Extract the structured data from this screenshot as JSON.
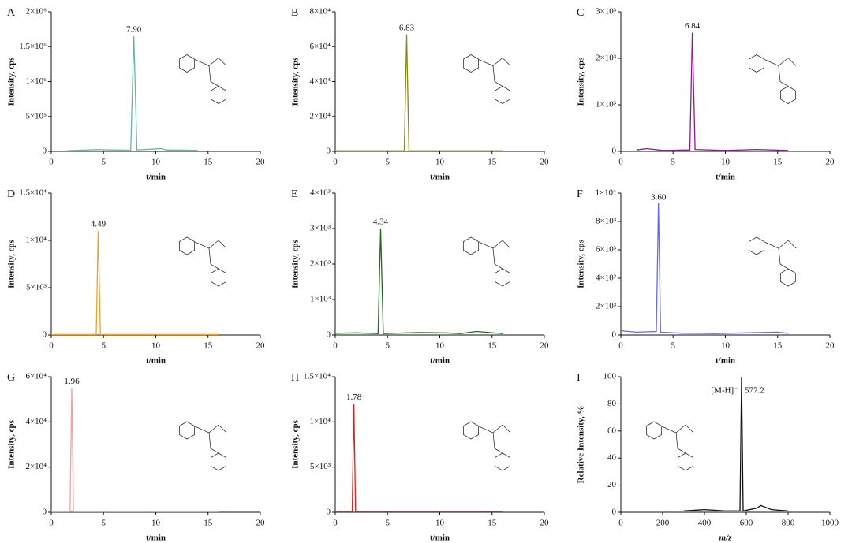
{
  "chart_data": [
    {
      "panel": "A",
      "type": "line",
      "xlabel": "t/min",
      "ylabel": "Intensity, cps",
      "xlim": [
        0,
        20
      ],
      "xticks": [
        0,
        5,
        10,
        15,
        20
      ],
      "ylim": [
        0,
        2000000
      ],
      "yticks": [
        0,
        {
          "value": 500000,
          "label": "5×10⁵"
        },
        {
          "value": 1000000,
          "label": "1×10⁶"
        },
        {
          "value": 1500000,
          "label": "1.5×10⁶"
        },
        {
          "value": 2000000,
          "label": "2×10⁶"
        }
      ],
      "series": [
        {
          "color": "#6fb3a6",
          "x": [
            1.5,
            4.3,
            6,
            7.6,
            7.9,
            8.2,
            10.5,
            11,
            14
          ],
          "values": [
            10000,
            25000,
            20000,
            15000,
            1650000,
            20000,
            40000,
            20000,
            15000
          ]
        }
      ],
      "annotations": [
        {
          "text": "7.90",
          "x": 7.9,
          "y": 1650000
        }
      ]
    },
    {
      "panel": "B",
      "type": "line",
      "xlabel": "t/min",
      "ylabel": "Intensity, cps",
      "xlim": [
        0,
        20
      ],
      "xticks": [
        0,
        5,
        10,
        15,
        20
      ],
      "ylim": [
        0,
        80000
      ],
      "yticks": [
        0,
        {
          "value": 20000,
          "label": "2×10⁴"
        },
        {
          "value": 40000,
          "label": "4×10⁴"
        },
        {
          "value": 60000,
          "label": "6×10⁴"
        },
        {
          "value": 80000,
          "label": "8×10⁴"
        }
      ],
      "series": [
        {
          "color": "#8a8a1a",
          "x": [
            0,
            6.6,
            6.83,
            7.05,
            16
          ],
          "values": [
            300,
            300,
            67000,
            300,
            300
          ]
        }
      ],
      "annotations": [
        {
          "text": "6.83",
          "x": 6.83,
          "y": 67000
        }
      ]
    },
    {
      "panel": "C",
      "type": "line",
      "xlabel": "t/min",
      "ylabel": "Intensity, cps",
      "xlim": [
        0,
        20
      ],
      "xticks": [
        0,
        5,
        10,
        15,
        20
      ],
      "ylim": [
        0,
        3000
      ],
      "yticks": [
        0,
        {
          "value": 1000,
          "label": "1×10³"
        },
        {
          "value": 2000,
          "label": "2×10³"
        },
        {
          "value": 3000,
          "label": "3×10³"
        }
      ],
      "series": [
        {
          "color": "#8b1a8b",
          "x": [
            1.5,
            2.5,
            4,
            6.6,
            6.84,
            7.1,
            10,
            13,
            16
          ],
          "values": [
            30,
            60,
            20,
            30,
            2550,
            40,
            20,
            40,
            20
          ]
        }
      ],
      "annotations": [
        {
          "text": "6.84",
          "x": 6.84,
          "y": 2550
        }
      ]
    },
    {
      "panel": "D",
      "type": "line",
      "xlabel": "t/min",
      "ylabel": "Intensity, cps",
      "xlim": [
        0,
        20
      ],
      "xticks": [
        0,
        5,
        10,
        15,
        20
      ],
      "ylim": [
        0,
        15000
      ],
      "yticks": [
        0,
        {
          "value": 5000,
          "label": "5×10³"
        },
        {
          "value": 10000,
          "label": "1×10⁴"
        },
        {
          "value": 15000,
          "label": "1.5×10⁴"
        }
      ],
      "series": [
        {
          "color": "#f0a030",
          "x": [
            0,
            4.3,
            4.49,
            4.7,
            16
          ],
          "values": [
            50,
            50,
            11000,
            50,
            50
          ]
        }
      ],
      "annotations": [
        {
          "text": "4.49",
          "x": 4.49,
          "y": 11000
        }
      ]
    },
    {
      "panel": "E",
      "type": "line",
      "xlabel": "t/min",
      "ylabel": "Intensity, cps",
      "xlim": [
        0,
        20
      ],
      "xticks": [
        0,
        5,
        10,
        15,
        20
      ],
      "ylim": [
        0,
        4000
      ],
      "yticks": [
        0,
        {
          "value": 1000,
          "label": "1×10³"
        },
        {
          "value": 2000,
          "label": "2×10³"
        },
        {
          "value": 3000,
          "label": "3×10³"
        },
        {
          "value": 4000,
          "label": "4×10³"
        }
      ],
      "series": [
        {
          "color": "#1f6b1f",
          "x": [
            0,
            2,
            4.1,
            4.34,
            4.6,
            8,
            10.5,
            12,
            13.5,
            16
          ],
          "values": [
            50,
            60,
            40,
            3000,
            40,
            70,
            60,
            40,
            100,
            40
          ]
        }
      ],
      "annotations": [
        {
          "text": "4.34",
          "x": 4.34,
          "y": 3000
        }
      ]
    },
    {
      "panel": "F",
      "type": "line",
      "xlabel": "t/min",
      "ylabel": "Intensity, cps",
      "xlim": [
        0,
        20
      ],
      "xticks": [
        0,
        5,
        10,
        15,
        20
      ],
      "ylim": [
        0,
        10000
      ],
      "yticks": [
        0,
        {
          "value": 2000,
          "label": "2×10³"
        },
        {
          "value": 4000,
          "label": "4×10³"
        },
        {
          "value": 6000,
          "label": "6×10³"
        },
        {
          "value": 8000,
          "label": "8×10³"
        },
        {
          "value": 10000,
          "label": "1×10⁴"
        }
      ],
      "series": [
        {
          "color": "#6a6ae0",
          "x": [
            0,
            1.5,
            3.4,
            3.6,
            3.8,
            6,
            9,
            12,
            15,
            16
          ],
          "values": [
            300,
            200,
            250,
            9300,
            200,
            120,
            100,
            150,
            200,
            120
          ]
        }
      ],
      "annotations": [
        {
          "text": "3.60",
          "x": 3.6,
          "y": 9300
        }
      ]
    },
    {
      "panel": "G",
      "type": "line",
      "xlabel": "t/min",
      "ylabel": "Intensity, cps",
      "xlim": [
        0,
        20
      ],
      "xticks": [
        0,
        5,
        10,
        15,
        20
      ],
      "ylim": [
        0,
        60000
      ],
      "yticks": [
        0,
        {
          "value": 20000,
          "label": "2×10⁴"
        },
        {
          "value": 40000,
          "label": "4×10⁴"
        },
        {
          "value": 60000,
          "label": "6×10⁴"
        }
      ],
      "series": [
        {
          "color": "#f0a0a0",
          "x": [
            0,
            1.8,
            1.96,
            2.12,
            16
          ],
          "values": [
            200,
            200,
            55000,
            200,
            200
          ]
        }
      ],
      "annotations": [
        {
          "text": "1.96",
          "x": 1.96,
          "y": 55000
        }
      ]
    },
    {
      "panel": "H",
      "type": "line",
      "xlabel": "t/min",
      "ylabel": "Intensity, cps",
      "xlim": [
        0,
        20
      ],
      "xticks": [
        0,
        5,
        10,
        15,
        20
      ],
      "ylim": [
        0,
        15000
      ],
      "yticks": [
        0,
        {
          "value": 5000,
          "label": "5×10³"
        },
        {
          "value": 10000,
          "label": "1×10⁴"
        },
        {
          "value": 15000,
          "label": "1.5×10⁴"
        }
      ],
      "series": [
        {
          "color": "#e02020",
          "x": [
            0,
            1.62,
            1.78,
            1.95,
            16
          ],
          "values": [
            50,
            50,
            12000,
            50,
            50
          ]
        }
      ],
      "annotations": [
        {
          "text": "1.78",
          "x": 1.78,
          "y": 12000
        }
      ]
    },
    {
      "panel": "I",
      "type": "line",
      "xlabel": "m/z",
      "ylabel": "Relative Intensity, %",
      "xlim": [
        0,
        1000
      ],
      "xticks": [
        0,
        200,
        400,
        600,
        800,
        1000
      ],
      "ylim": [
        0,
        100
      ],
      "yticks": [
        0,
        20,
        40,
        60,
        80,
        100
      ],
      "series": [
        {
          "color": "#111111",
          "x": [
            300,
            400,
            500,
            570,
            577.2,
            585,
            650,
            670,
            720,
            800
          ],
          "values": [
            1,
            2,
            1,
            1,
            100,
            1,
            3,
            5,
            2,
            1
          ]
        }
      ],
      "annotations": [
        {
          "text": "[M-H]⁻",
          "x": 577.2,
          "y": 100
        },
        {
          "text": "577.2",
          "x": 577.2,
          "y": 100
        }
      ]
    }
  ]
}
